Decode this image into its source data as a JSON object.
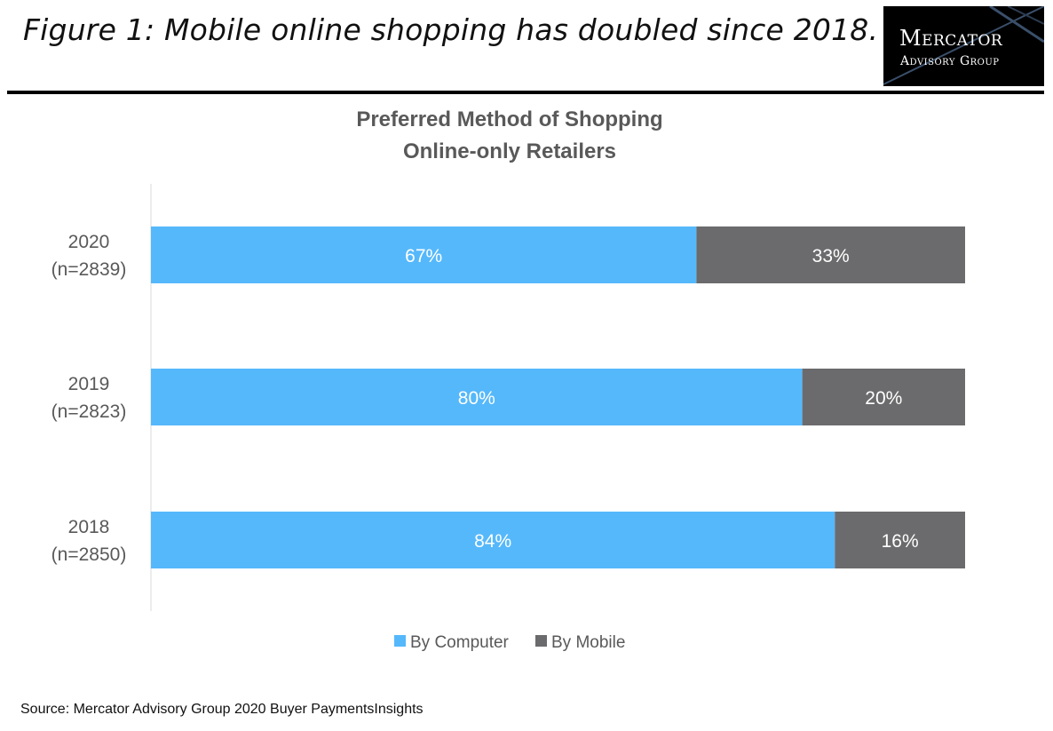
{
  "figure_title": "Figure 1: Mobile online shopping has doubled since 2018.",
  "logo": {
    "line1": "Mercator",
    "line2": "Advisory Group"
  },
  "source": "Source: Mercator Advisory Group 2020 Buyer PaymentsInsights",
  "chart_data": {
    "type": "bar",
    "orientation": "horizontal",
    "stacked": true,
    "title": "Preferred Method of Shopping",
    "subtitle": "Online-only Retailers",
    "categories": [
      {
        "year": "2020",
        "n": "(n=2839)"
      },
      {
        "year": "2019",
        "n": "(n=2823)"
      },
      {
        "year": "2018",
        "n": "(n=2850)"
      }
    ],
    "series": [
      {
        "name": "By Computer",
        "color": "#55b8fb",
        "values": [
          67,
          80,
          84
        ],
        "labels": [
          "67%",
          "80%",
          "84%"
        ]
      },
      {
        "name": "By Mobile",
        "color": "#6b6b6d",
        "values": [
          33,
          20,
          16
        ],
        "labels": [
          "33%",
          "20%",
          "16%"
        ]
      }
    ],
    "xlim": [
      0,
      100
    ],
    "grid": false,
    "legend_position": "bottom"
  }
}
